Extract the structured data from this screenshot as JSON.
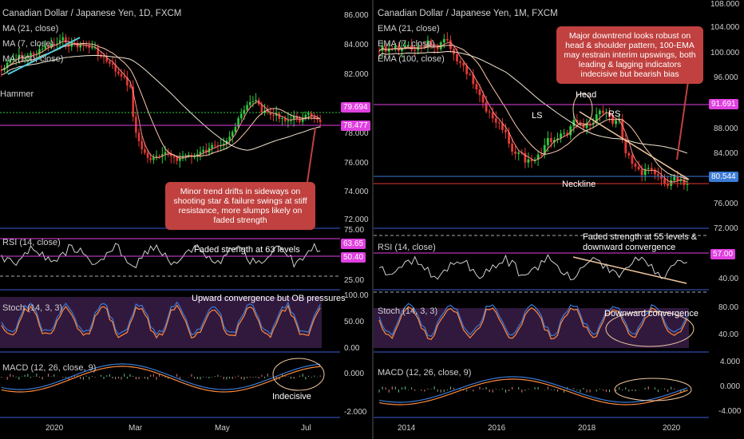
{
  "colors": {
    "up": "#2ecc40",
    "down": "#e53935",
    "hline_green": "#2ecc40",
    "hline_magenta": "#e040e0",
    "ma_blue": "#3b7bd6",
    "callout": "#c0413f",
    "osc_bg": "#3d1f4d"
  },
  "left": {
    "title": "Canadian Dollar / Japanese Yen, 1D, FXCM",
    "indicators": [
      "MA (21, close)",
      "MA (7, close)",
      "MA (100, close)"
    ],
    "pattern_label": "Hammer",
    "price_axis": [
      "86.000",
      "84.000",
      "82.000",
      "80.000",
      "78.000",
      "76.000",
      "74.000",
      "72.000"
    ],
    "tags": [
      {
        "text": "79.694",
        "color": "#e040e0"
      },
      {
        "text": "78.477",
        "color": "#e040e0"
      }
    ],
    "callout": "Minor trend drifts in sideways on shooting star & failure swings at stiff resistance, more slumps likely on faded strength",
    "rsi": {
      "label": "RSI (14, close)",
      "note": "Faded strength at 63 levels",
      "axis": [
        "75.00",
        "25.00"
      ],
      "tags": [
        {
          "text": "63.65",
          "color": "#e040e0"
        },
        {
          "text": "50.40",
          "color": "#e040e0"
        }
      ]
    },
    "stoch": {
      "label": "Stoch (14, 3, 3)",
      "note": "Upward convergence but OB pressures",
      "axis": [
        "100.00",
        "50.00",
        "0.00"
      ]
    },
    "macd": {
      "label": "MACD (12, 26, close, 9)",
      "note": "Indecisive",
      "axis": [
        "0.000",
        "-2.000"
      ]
    },
    "dates": [
      "2020",
      "Mar",
      "May",
      "Jul"
    ]
  },
  "right": {
    "title": "Canadian Dollar / Japanese Yen, 1M, FXCM",
    "indicators": [
      "EMA (21, close)",
      "EMA (7, close)",
      "EMA (100, close)"
    ],
    "price_axis": [
      "108.000",
      "104.000",
      "100.000",
      "96.000",
      "88.000",
      "84.000",
      "76.000",
      "72.000"
    ],
    "tags": [
      {
        "text": "91.691",
        "color": "#e040e0"
      },
      {
        "text": "80.544",
        "color": "#3b7bd6"
      }
    ],
    "callout": "Major downtrend looks robust on head & shoulder pattern, 100-EMA may restrain interim upswings, both leading & lagging indicators indecisive but bearish bias",
    "labels": {
      "head": "Head",
      "ls": "LS",
      "rs": "RS",
      "neckline": "Neckline"
    },
    "rsi": {
      "label": "RSI (14, close)",
      "note": "Faded strength at 55 levels & downward convergence",
      "axis": [
        "40.00"
      ],
      "tags": [
        {
          "text": "57.00",
          "color": "#e040e0"
        }
      ]
    },
    "stoch": {
      "label": "Stoch (14, 3, 3)",
      "note": "Downward convergence",
      "axis": [
        "80.00",
        "40.00"
      ]
    },
    "macd": {
      "label": "MACD (12, 26, close, 9)",
      "axis": [
        "4.000",
        "0.000",
        "-4.000"
      ]
    },
    "dates": [
      "2014",
      "2016",
      "2018",
      "2020"
    ]
  }
}
